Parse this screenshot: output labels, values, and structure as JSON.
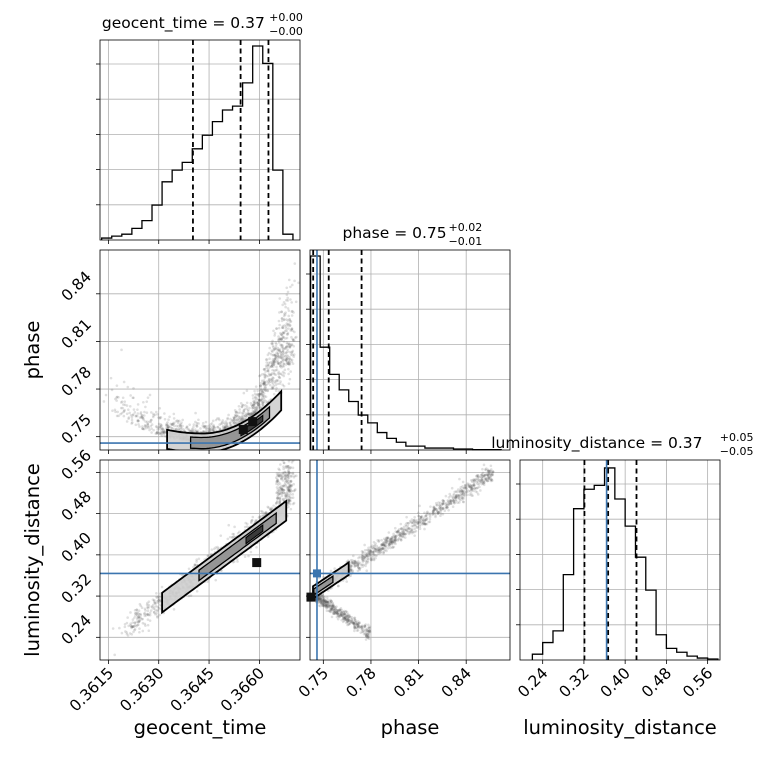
{
  "chart_data": {
    "type": "corner",
    "parameters": [
      "geocent_time",
      "phase",
      "luminosity_distance"
    ],
    "injection": {
      "phase": 0.746,
      "luminosity_distance": 0.364
    },
    "panels": [
      {
        "id": "hist-geocent_time",
        "type": "bar",
        "title": "geocent_time = 0.37",
        "title_sup": "+0.00",
        "title_sub": "−0.00",
        "xlim": [
          0.36125,
          0.36721
        ],
        "ylim": [
          0,
          1.0
        ],
        "bin_edges": [
          0.3613,
          0.3616,
          0.3619,
          0.3622,
          0.3625,
          0.3628,
          0.3631,
          0.3634,
          0.3637,
          0.364,
          0.3643,
          0.3646,
          0.3649,
          0.3652,
          0.3655,
          0.3658,
          0.3661,
          0.3664,
          0.3667,
          0.367
        ],
        "values": [
          0.01,
          0.02,
          0.03,
          0.06,
          0.1,
          0.18,
          0.3,
          0.36,
          0.4,
          0.47,
          0.54,
          0.61,
          0.67,
          0.69,
          0.81,
          1.0,
          0.91,
          0.36,
          0.03
        ],
        "quantiles": [
          0.36402,
          0.36544,
          0.36627
        ]
      },
      {
        "id": "hist-phase",
        "type": "bar",
        "title": "phase = 0.75",
        "title_sup": "+0.02",
        "title_sub": "−0.01",
        "xlim": [
          0.7416,
          0.8676
        ],
        "ylim": [
          0,
          1.0
        ],
        "bin_edges": [
          0.742,
          0.748,
          0.754,
          0.76,
          0.766,
          0.772,
          0.778,
          0.784,
          0.79,
          0.796,
          0.802,
          0.808,
          0.814,
          0.82,
          0.826,
          0.832,
          0.838,
          0.844,
          0.85,
          0.856,
          0.862
        ],
        "values": [
          1.0,
          0.53,
          0.39,
          0.31,
          0.25,
          0.18,
          0.14,
          0.09,
          0.06,
          0.04,
          0.02,
          0.02,
          0.01,
          0.01,
          0.01,
          0.005,
          0.005,
          0.002,
          0.002,
          0.002
        ],
        "quantiles": [
          0.7436,
          0.7534,
          0.7741
        ]
      },
      {
        "id": "hist-luminosity_distance",
        "type": "bar",
        "title": "luminosity_distance = 0.37",
        "title_sup": "+0.05",
        "title_sub": "−0.05",
        "xlim": [
          0.196,
          0.584
        ],
        "ylim": [
          0,
          1.0
        ],
        "bin_edges": [
          0.22,
          0.24,
          0.26,
          0.28,
          0.3,
          0.32,
          0.34,
          0.36,
          0.38,
          0.4,
          0.42,
          0.44,
          0.46,
          0.48,
          0.5,
          0.52,
          0.54,
          0.56,
          0.58
        ],
        "values": [
          0.03,
          0.09,
          0.15,
          0.44,
          0.78,
          0.88,
          0.9,
          0.99,
          0.83,
          0.69,
          0.53,
          0.36,
          0.13,
          0.06,
          0.04,
          0.02,
          0.01,
          0.005
        ],
        "quantiles": [
          0.321,
          0.367,
          0.422
        ]
      },
      {
        "id": "scatter-geocent_time-phase",
        "type": "scatter",
        "x": "geocent_time",
        "y": "phase",
        "xlim": [
          0.36125,
          0.36721
        ],
        "ylim": [
          0.7416,
          0.8676
        ],
        "x_ticks": [
          "0.3615",
          "0.3630",
          "0.3645",
          "0.3660"
        ],
        "y_ticks": [
          "0.75",
          "0.78",
          "0.81",
          "0.84"
        ],
        "ylabel": "phase"
      },
      {
        "id": "scatter-geocent_time-luminosity_distance",
        "type": "scatter",
        "x": "geocent_time",
        "y": "luminosity_distance",
        "xlim": [
          0.36125,
          0.36721
        ],
        "ylim": [
          0.196,
          0.584
        ],
        "x_ticks": [
          "0.3615",
          "0.3630",
          "0.3645",
          "0.3660"
        ],
        "y_ticks": [
          "0.24",
          "0.32",
          "0.40",
          "0.48",
          "0.56"
        ],
        "xlabel": "geocent_time",
        "ylabel": "luminosity_distance"
      },
      {
        "id": "scatter-phase-luminosity_distance",
        "type": "scatter",
        "x": "phase",
        "y": "luminosity_distance",
        "xlim": [
          0.7416,
          0.8676
        ],
        "ylim": [
          0.196,
          0.584
        ],
        "x_ticks": [
          "0.75",
          "0.78",
          "0.81",
          "0.84"
        ],
        "xlabel": "phase"
      }
    ],
    "x_ticks_bottom": {
      "geocent_time": [
        "0.3615",
        "0.3630",
        "0.3645",
        "0.3660"
      ],
      "phase": [
        "0.75",
        "0.78",
        "0.81",
        "0.84"
      ],
      "luminosity_distance": [
        "0.24",
        "0.32",
        "0.40",
        "0.48",
        "0.56"
      ]
    },
    "grid": true,
    "colors": {
      "injection": "#3b75af",
      "hist": "#000000",
      "points": "#555555",
      "contour_fill": "#9a9a9a"
    }
  }
}
